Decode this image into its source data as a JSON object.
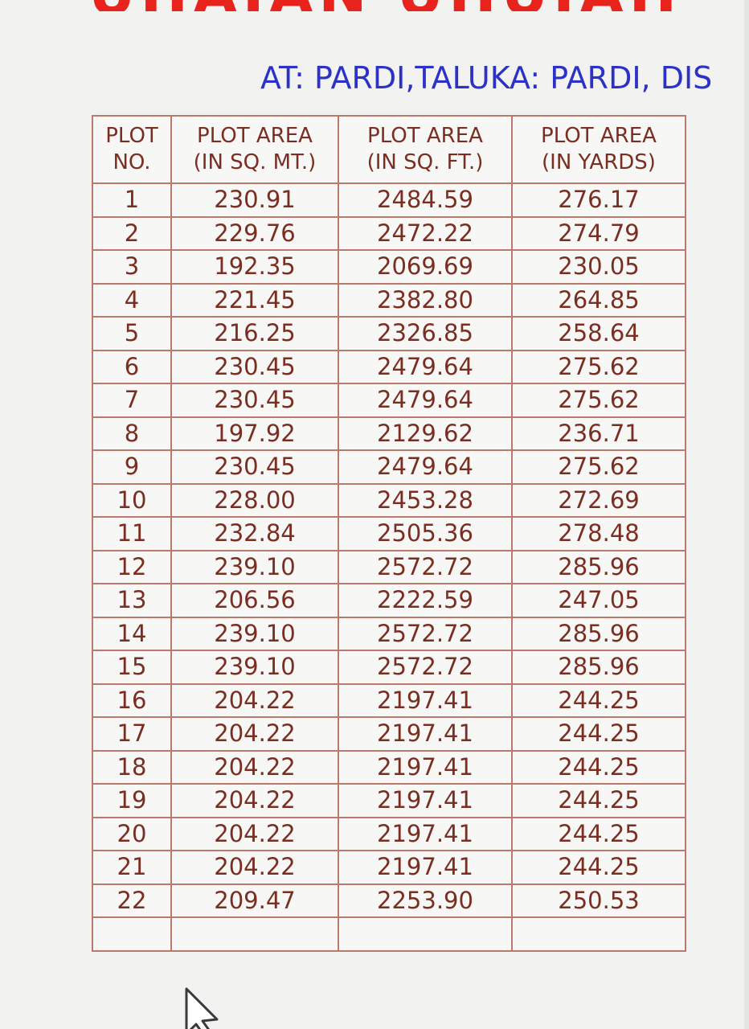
{
  "title_partial": "UIIAIAN UIIUIAII",
  "subtitle": "AT: PARDI,TALUKA: PARDI, DIS",
  "table": {
    "headers": [
      [
        "PLOT",
        "NO."
      ],
      [
        "PLOT AREA",
        "(IN SQ. MT.)"
      ],
      [
        "PLOT AREA",
        "(IN SQ. FT.)"
      ],
      [
        "PLOT AREA",
        "(IN YARDS)"
      ]
    ],
    "rows": [
      [
        "1",
        "230.91",
        "2484.59",
        "276.17"
      ],
      [
        "2",
        "229.76",
        "2472.22",
        "274.79"
      ],
      [
        "3",
        "192.35",
        "2069.69",
        "230.05"
      ],
      [
        "4",
        "221.45",
        "2382.80",
        "264.85"
      ],
      [
        "5",
        "216.25",
        "2326.85",
        "258.64"
      ],
      [
        "6",
        "230.45",
        "2479.64",
        "275.62"
      ],
      [
        "7",
        "230.45",
        "2479.64",
        "275.62"
      ],
      [
        "8",
        "197.92",
        "2129.62",
        "236.71"
      ],
      [
        "9",
        "230.45",
        "2479.64",
        "275.62"
      ],
      [
        "10",
        "228.00",
        "2453.28",
        "272.69"
      ],
      [
        "11",
        "232.84",
        "2505.36",
        "278.48"
      ],
      [
        "12",
        "239.10",
        "2572.72",
        "285.96"
      ],
      [
        "13",
        "206.56",
        "2222.59",
        "247.05"
      ],
      [
        "14",
        "239.10",
        "2572.72",
        "285.96"
      ],
      [
        "15",
        "239.10",
        "2572.72",
        "285.96"
      ],
      [
        "16",
        "204.22",
        "2197.41",
        "244.25"
      ],
      [
        "17",
        "204.22",
        "2197.41",
        "244.25"
      ],
      [
        "18",
        "204.22",
        "2197.41",
        "244.25"
      ],
      [
        "19",
        "204.22",
        "2197.41",
        "244.25"
      ],
      [
        "20",
        "204.22",
        "2197.41",
        "244.25"
      ],
      [
        "21",
        "204.22",
        "2197.41",
        "244.25"
      ],
      [
        "22",
        "209.47",
        "2253.90",
        "250.53"
      ]
    ]
  },
  "icons": {
    "pointer": "mouse-pointer-icon"
  },
  "colors": {
    "title": "#e8231c",
    "subtitle": "#2c31c8",
    "table_text": "#7a2e22",
    "table_border": "#b97a6c",
    "background": "#f2f3f1"
  }
}
